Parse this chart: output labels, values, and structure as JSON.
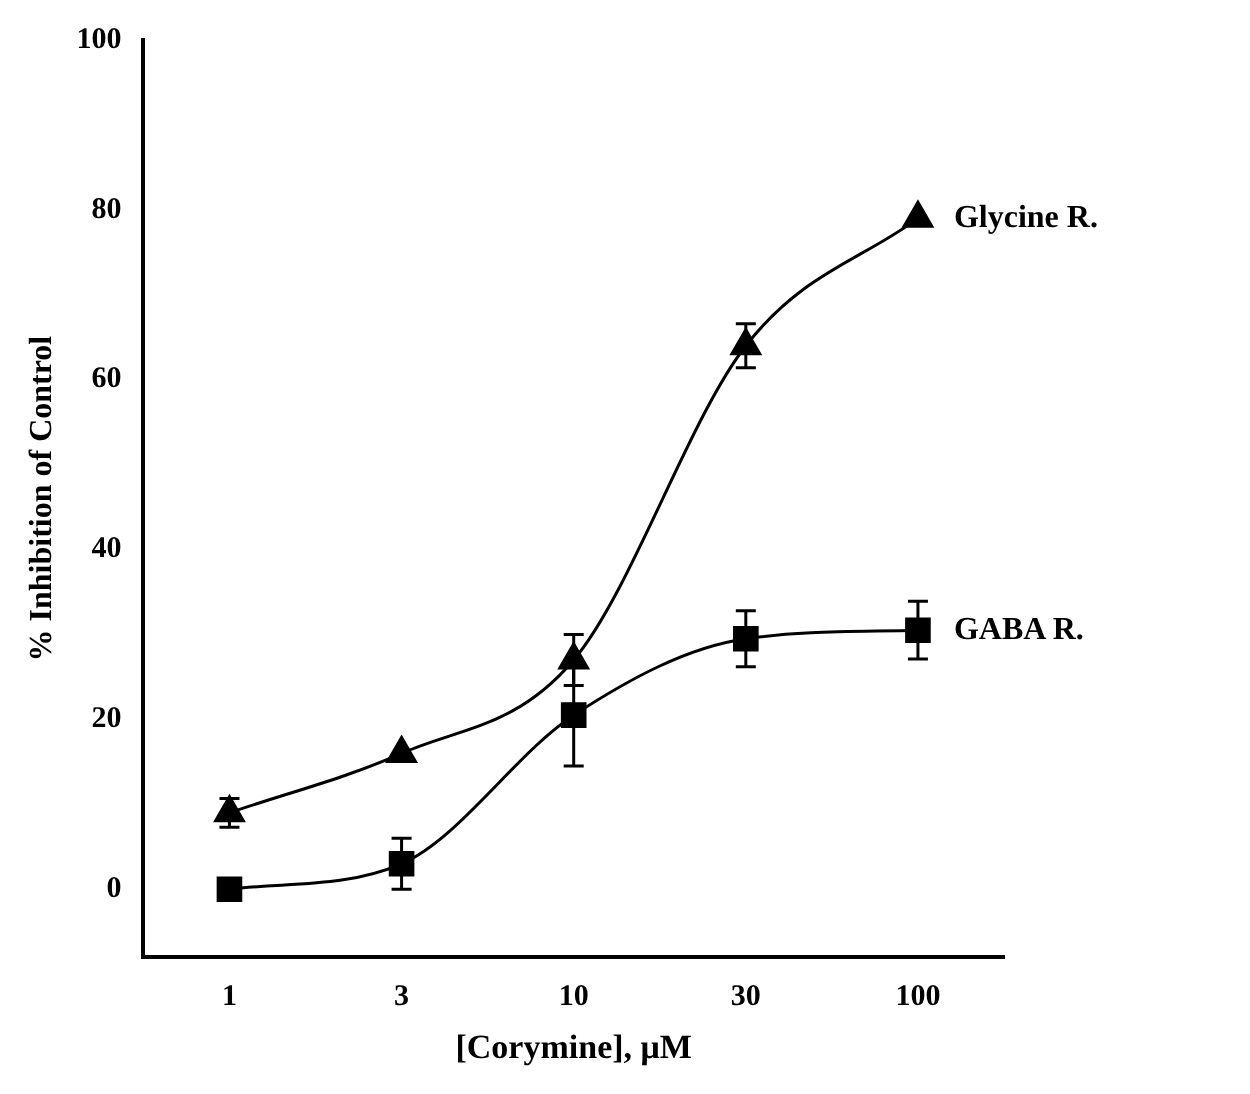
{
  "chart_data": {
    "type": "line",
    "xlabel": "[Corymine], μM",
    "ylabel": "% Inhibition of Control",
    "categories": [
      "1",
      "3",
      "10",
      "30",
      "100"
    ],
    "ylim": [
      -8,
      100
    ],
    "yticks": [
      0,
      20,
      40,
      60,
      80,
      100
    ],
    "grid": false,
    "legend": false,
    "line_style": "solid",
    "series": [
      {
        "name": "Glycine R.",
        "color": "#000000",
        "marker": "triangle",
        "values": [
          9,
          16,
          27,
          64,
          79
        ],
        "errors": [
          1.7,
          null,
          3,
          2.6,
          null
        ]
      },
      {
        "name": "GABA R.",
        "color": "#000000",
        "marker": "square",
        "values": [
          0,
          3,
          20.5,
          29.5,
          30.5
        ],
        "errors": [
          null,
          3,
          6,
          3.3,
          3.4
        ]
      }
    ]
  }
}
